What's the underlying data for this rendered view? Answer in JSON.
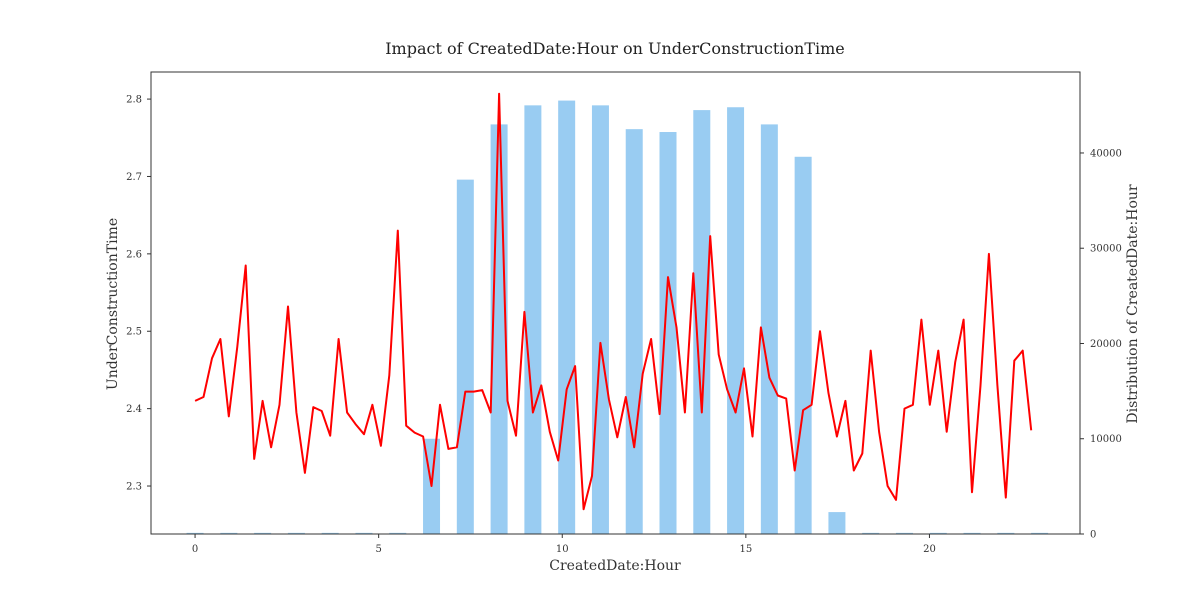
{
  "chart_data": {
    "type": "bar+line",
    "title": "Impact of CreatedDate:Hour on UnderConstructionTime",
    "xlabel": "CreatedDate:Hour",
    "ylabel_left": "UnderConstructionTime",
    "ylabel_right": "Distribution of CreatedDate:Hour",
    "xlim": [
      -1.2,
      24.1
    ],
    "ylim_left": [
      2.238,
      2.835
    ],
    "ylim_right": [
      0,
      48500
    ],
    "x_ticks": [
      0,
      5,
      10,
      15,
      20
    ],
    "y_left_ticks": [
      2.3,
      2.4,
      2.5,
      2.6,
      2.7,
      2.8
    ],
    "y_right_ticks": [
      0,
      10000,
      20000,
      30000,
      40000
    ],
    "grid": false,
    "bar_color": "#99CCF2",
    "line_color": "#FF0000",
    "bars": {
      "name": "Distribution of CreatedDate:Hour",
      "x": [
        0,
        0.92,
        1.84,
        2.76,
        3.68,
        4.6,
        5.52,
        6.44,
        7.36,
        8.28,
        9.2,
        10.12,
        11.04,
        11.96,
        12.88,
        13.8,
        14.72,
        15.64,
        16.56,
        17.48,
        18.4,
        19.32,
        20.24,
        21.16,
        22.08,
        23.0
      ],
      "values": [
        120,
        120,
        120,
        120,
        120,
        120,
        120,
        10000,
        37200,
        43000,
        45000,
        45500,
        45000,
        42500,
        42200,
        44500,
        44800,
        43000,
        39600,
        2300,
        120,
        120,
        120,
        120,
        120,
        120
      ]
    },
    "line": {
      "name": "UnderConstructionTime",
      "x": [
        0,
        0.23,
        0.46,
        0.69,
        0.92,
        1.15,
        1.38,
        1.61,
        1.84,
        2.07,
        2.3,
        2.53,
        2.76,
        2.99,
        3.22,
        3.45,
        3.68,
        3.91,
        4.14,
        4.37,
        4.6,
        4.83,
        5.06,
        5.29,
        5.52,
        5.75,
        5.98,
        6.21,
        6.44,
        6.67,
        6.9,
        7.13,
        7.36,
        7.59,
        7.82,
        8.05,
        8.28,
        8.51,
        8.74,
        8.97,
        9.2,
        9.43,
        9.66,
        9.89,
        10.12,
        10.35,
        10.58,
        10.81,
        11.04,
        11.27,
        11.5,
        11.73,
        11.96,
        12.19,
        12.42,
        12.65,
        12.88,
        13.11,
        13.34,
        13.57,
        13.8,
        14.03,
        14.26,
        14.49,
        14.72,
        14.95,
        15.18,
        15.41,
        15.64,
        15.87,
        16.1,
        16.33,
        16.56,
        16.79,
        17.02,
        17.25,
        17.48,
        17.71,
        17.94,
        18.17,
        18.4,
        18.63,
        18.86,
        19.09,
        19.32,
        19.55,
        19.78,
        20.01,
        20.24,
        20.47,
        20.7,
        20.93,
        21.16,
        21.39,
        21.62,
        21.85,
        22.08,
        22.31,
        22.54,
        22.77
      ],
      "values": [
        2.41,
        2.415,
        2.465,
        2.49,
        2.39,
        2.48,
        2.585,
        2.335,
        2.41,
        2.35,
        2.405,
        2.532,
        2.395,
        2.317,
        2.402,
        2.397,
        2.365,
        2.49,
        2.395,
        2.38,
        2.367,
        2.405,
        2.352,
        2.443,
        2.63,
        2.378,
        2.369,
        2.364,
        2.3,
        2.405,
        2.348,
        2.35,
        2.422,
        2.422,
        2.424,
        2.395,
        2.807,
        2.41,
        2.365,
        2.525,
        2.395,
        2.43,
        2.37,
        2.333,
        2.425,
        2.455,
        2.27,
        2.313,
        2.485,
        2.412,
        2.363,
        2.415,
        2.35,
        2.445,
        2.49,
        2.393,
        2.57,
        2.505,
        2.395,
        2.575,
        2.395,
        2.623,
        2.47,
        2.425,
        2.395,
        2.452,
        2.364,
        2.505,
        2.44,
        2.417,
        2.413,
        2.32,
        2.398,
        2.405,
        2.5,
        2.42,
        2.364,
        2.41,
        2.32,
        2.342,
        2.475,
        2.37,
        2.3,
        2.282,
        2.4,
        2.405,
        2.515,
        2.405,
        2.475,
        2.37,
        2.46,
        2.515,
        2.292,
        2.43,
        2.6,
        2.43,
        2.285,
        2.462,
        2.475,
        2.372
      ]
    }
  }
}
